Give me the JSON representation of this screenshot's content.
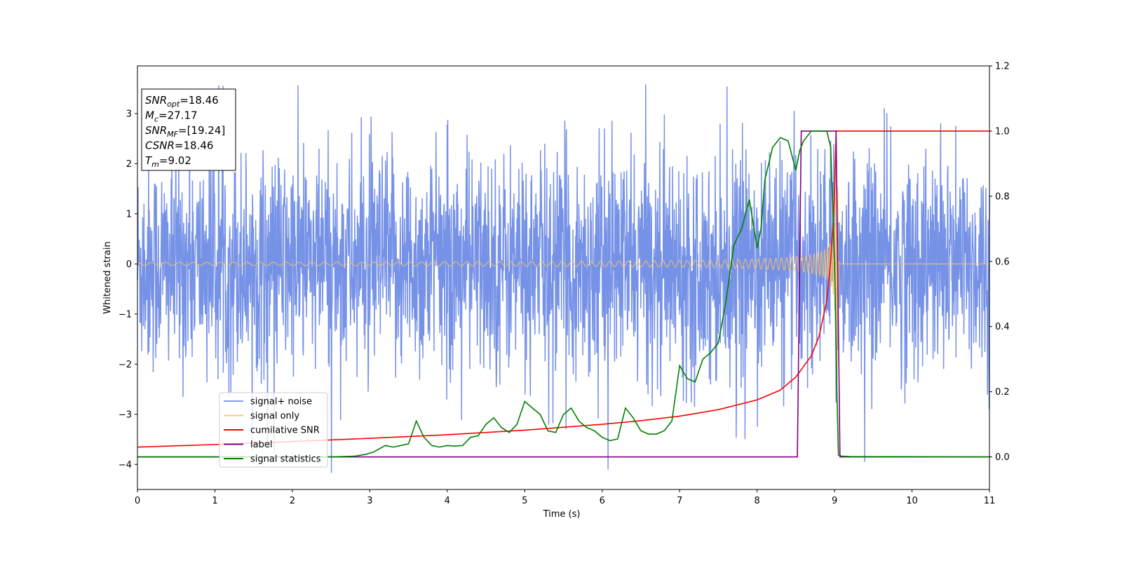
{
  "chart_data": {
    "type": "line",
    "title": "",
    "xlabel": "Time (s)",
    "ylabel": "Whitened strain",
    "ylabel_right": "",
    "xlim": [
      0,
      11
    ],
    "ylim": [
      -4.5,
      3.95
    ],
    "ylim_right": [
      -0.1,
      1.2
    ],
    "x_ticks": [
      0,
      1,
      2,
      3,
      4,
      5,
      6,
      7,
      8,
      9,
      10,
      11
    ],
    "y_ticks": [
      -4,
      -3,
      -2,
      -1,
      0,
      1,
      2,
      3
    ],
    "y_ticks_right": [
      0.0,
      0.2,
      0.4,
      0.6,
      0.8,
      1.0,
      1.2
    ],
    "grid": false,
    "legend_position": "lower-left",
    "annotation": [
      {
        "base": "SNR",
        "sub": "opt",
        "value": "=18.46"
      },
      {
        "base": "M",
        "sub": "c",
        "value": "=27.17"
      },
      {
        "base": "SNR",
        "sub": "MF",
        "value": "=[19.24]"
      },
      {
        "base": "CSNR",
        "sub": "",
        "value": "=18.46"
      },
      {
        "base": "T",
        "sub": "m",
        "value": "=9.02"
      }
    ],
    "series": [
      {
        "name": "signal+ noise",
        "axis": "left",
        "color": "#6f8ce6",
        "kind": "noise",
        "std": 0.95,
        "merger_time": 9.02
      },
      {
        "name": "signal only",
        "axis": "left",
        "color": "#f5c26b",
        "kind": "chirp",
        "start_amplitude": 0.03,
        "peak_amplitude": 3.25,
        "merger_time": 9.02,
        "ringdown_end": 9.06
      },
      {
        "name": "cumilative SNR",
        "axis": "right",
        "x": [
          0,
          1,
          2,
          3,
          4,
          5,
          6,
          6.5,
          7,
          7.5,
          8,
          8.3,
          8.5,
          8.7,
          8.8,
          8.9,
          8.95,
          9.0,
          9.02,
          11
        ],
        "y": [
          0.03,
          0.038,
          0.047,
          0.057,
          0.068,
          0.082,
          0.1,
          0.111,
          0.125,
          0.145,
          0.175,
          0.205,
          0.245,
          0.31,
          0.37,
          0.48,
          0.6,
          0.8,
          1.0,
          1.0
        ]
      },
      {
        "name": "label",
        "axis": "right",
        "x": [
          0,
          8.52,
          8.57,
          9.02,
          9.07,
          11
        ],
        "y": [
          0,
          0,
          1,
          1,
          0,
          0
        ]
      },
      {
        "name": "signal statistics",
        "axis": "right",
        "x": [
          0,
          1,
          2,
          2.5,
          2.8,
          2.95,
          3.05,
          3.2,
          3.3,
          3.4,
          3.5,
          3.6,
          3.7,
          3.8,
          3.9,
          4.0,
          4.1,
          4.2,
          4.3,
          4.4,
          4.5,
          4.6,
          4.7,
          4.8,
          4.9,
          5.0,
          5.1,
          5.2,
          5.3,
          5.4,
          5.5,
          5.6,
          5.7,
          5.8,
          5.9,
          6.0,
          6.1,
          6.2,
          6.3,
          6.4,
          6.5,
          6.6,
          6.7,
          6.8,
          6.9,
          7.0,
          7.1,
          7.2,
          7.3,
          7.4,
          7.5,
          7.6,
          7.7,
          7.8,
          7.9,
          8.0,
          8.05,
          8.1,
          8.2,
          8.3,
          8.4,
          8.5,
          8.55,
          8.6,
          8.7,
          8.8,
          8.9,
          8.95,
          9.0,
          9.03,
          9.05,
          9.1,
          9.2,
          11
        ],
        "y": [
          0,
          0,
          0,
          0,
          0.002,
          0.008,
          0.015,
          0.035,
          0.03,
          0.035,
          0.04,
          0.11,
          0.06,
          0.035,
          0.03,
          0.035,
          0.033,
          0.035,
          0.06,
          0.065,
          0.1,
          0.12,
          0.09,
          0.075,
          0.1,
          0.17,
          0.15,
          0.13,
          0.08,
          0.075,
          0.13,
          0.15,
          0.11,
          0.09,
          0.08,
          0.06,
          0.05,
          0.055,
          0.15,
          0.12,
          0.08,
          0.07,
          0.07,
          0.08,
          0.11,
          0.28,
          0.24,
          0.23,
          0.3,
          0.32,
          0.35,
          0.48,
          0.65,
          0.7,
          0.79,
          0.64,
          0.7,
          0.85,
          0.95,
          0.98,
          0.97,
          0.88,
          0.94,
          0.97,
          1.0,
          1.0,
          1.0,
          0.95,
          0.6,
          0.2,
          0.005,
          0.002,
          0.001,
          0
        ]
      }
    ]
  }
}
